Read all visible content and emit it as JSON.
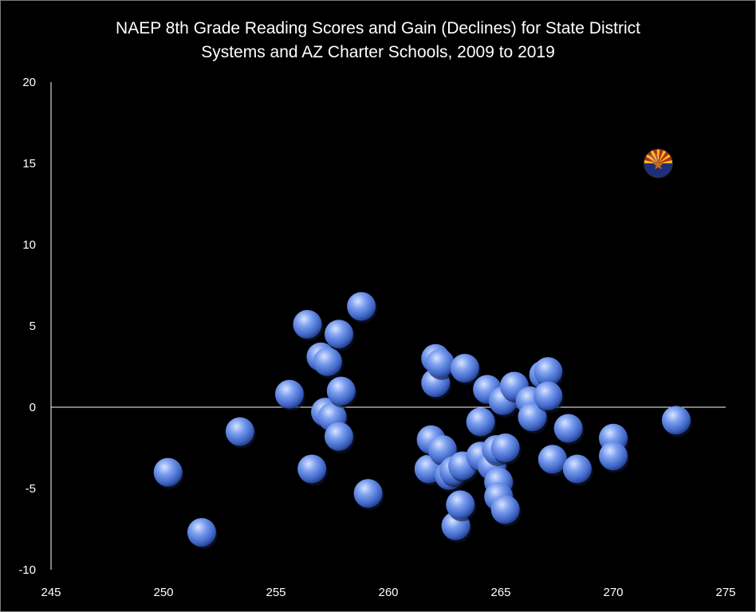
{
  "chart_data": {
    "type": "scatter",
    "title_lines": [
      "NAEP 8th Grade Reading Scores and Gain (Declines) for State District",
      "Systems and AZ Charter Schools, 2009 to 2019"
    ],
    "xlabel": "",
    "ylabel": "",
    "xlim": [
      245,
      275
    ],
    "ylim": [
      -10,
      20
    ],
    "x_ticks": [
      "245",
      "250",
      "255",
      "260",
      "265",
      "270",
      "275"
    ],
    "y_ticks": [
      "20",
      "15",
      "10",
      "5",
      "0",
      "-5",
      "-10"
    ],
    "grid": false,
    "legend": "none",
    "marker_color": "#4a73d6",
    "points": [
      {
        "x": 250.2,
        "y": -4.0
      },
      {
        "x": 251.7,
        "y": -7.7
      },
      {
        "x": 253.4,
        "y": -1.5
      },
      {
        "x": 255.6,
        "y": 0.8
      },
      {
        "x": 256.4,
        "y": 5.1
      },
      {
        "x": 256.6,
        "y": -3.8
      },
      {
        "x": 257.0,
        "y": 3.1
      },
      {
        "x": 257.3,
        "y": 2.8
      },
      {
        "x": 257.2,
        "y": -0.3
      },
      {
        "x": 257.5,
        "y": -0.6
      },
      {
        "x": 257.8,
        "y": 4.5
      },
      {
        "x": 257.9,
        "y": 1.0
      },
      {
        "x": 257.8,
        "y": -1.8
      },
      {
        "x": 258.8,
        "y": 6.2
      },
      {
        "x": 259.1,
        "y": -5.3
      },
      {
        "x": 261.8,
        "y": -3.8
      },
      {
        "x": 261.9,
        "y": -2.0
      },
      {
        "x": 262.1,
        "y": 3.0
      },
      {
        "x": 262.1,
        "y": 1.5
      },
      {
        "x": 262.3,
        "y": 2.7
      },
      {
        "x": 262.4,
        "y": -2.6
      },
      {
        "x": 262.7,
        "y": -4.2
      },
      {
        "x": 262.9,
        "y": -3.9
      },
      {
        "x": 263.0,
        "y": -7.3
      },
      {
        "x": 263.3,
        "y": -3.6
      },
      {
        "x": 263.2,
        "y": -6.0
      },
      {
        "x": 263.4,
        "y": 2.4
      },
      {
        "x": 264.1,
        "y": -3.0
      },
      {
        "x": 264.1,
        "y": -0.9
      },
      {
        "x": 264.4,
        "y": 1.1
      },
      {
        "x": 264.6,
        "y": -3.6
      },
      {
        "x": 264.8,
        "y": -2.6
      },
      {
        "x": 264.9,
        "y": -4.6
      },
      {
        "x": 264.9,
        "y": -5.5
      },
      {
        "x": 265.1,
        "y": 0.4
      },
      {
        "x": 265.2,
        "y": -2.5
      },
      {
        "x": 265.2,
        "y": -6.3
      },
      {
        "x": 265.6,
        "y": 1.3
      },
      {
        "x": 266.3,
        "y": 0.4
      },
      {
        "x": 266.4,
        "y": -0.6
      },
      {
        "x": 266.9,
        "y": 2.0
      },
      {
        "x": 267.1,
        "y": 2.2
      },
      {
        "x": 267.1,
        "y": 0.7
      },
      {
        "x": 267.3,
        "y": -3.2
      },
      {
        "x": 268.0,
        "y": -1.3
      },
      {
        "x": 268.4,
        "y": -3.8
      },
      {
        "x": 270.0,
        "y": -1.9
      },
      {
        "x": 270.0,
        "y": -3.0
      },
      {
        "x": 272.8,
        "y": -0.8
      }
    ],
    "highlight_point": {
      "x": 272.0,
      "y": 15.0,
      "icon": "arizona-flag-icon"
    }
  }
}
